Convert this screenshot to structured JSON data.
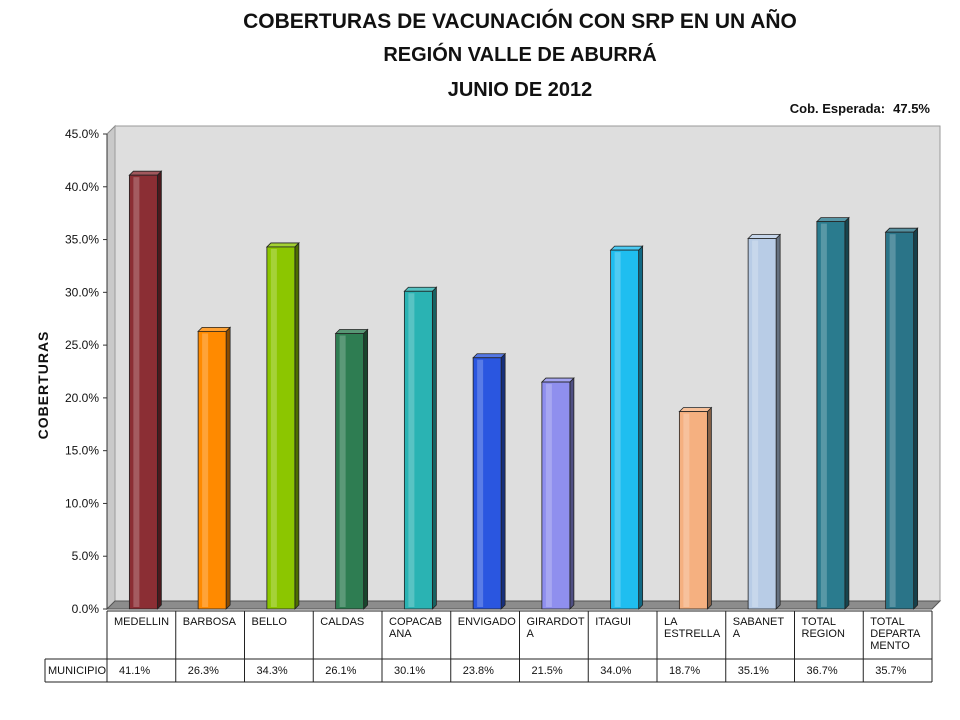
{
  "header": {
    "title_line1": "COBERTURAS DE VACUNACIÓN CON SRP EN UN AÑO",
    "title_line2": "REGIÓN VALLE DE ABURRÁ",
    "title_line3": "JUNIO DE 2012",
    "expected_label": "Cob. Esperada:",
    "expected_value": "47.5%"
  },
  "chart_data": {
    "type": "bar",
    "title": "COBERTURAS DE VACUNACIÓN CON SRP EN UN AÑO REGIÓN VALLE DE ABURRÁ JUNIO DE 2012",
    "ylabel": "COBERTURAS",
    "xlabel": "",
    "ylim": [
      0,
      45
    ],
    "y_ticks": [
      "0.0%",
      "5.0%",
      "10.0%",
      "15.0%",
      "20.0%",
      "25.0%",
      "30.0%",
      "35.0%",
      "40.0%",
      "45.0%"
    ],
    "grid": false,
    "series": [
      {
        "name": "MUNICIPIO",
        "values": [
          41.1,
          26.3,
          34.3,
          26.1,
          30.1,
          23.8,
          21.5,
          34.0,
          18.7,
          35.1,
          36.7,
          35.7
        ],
        "labels": [
          "41.1%",
          "26.3%",
          "34.3%",
          "26.1%",
          "30.1%",
          "23.8%",
          "21.5%",
          "34.0%",
          "18.7%",
          "35.1%",
          "36.7%",
          "35.7%"
        ]
      }
    ],
    "categories": [
      [
        "MEDELLIN"
      ],
      [
        "BARBOSA"
      ],
      [
        "BELLO"
      ],
      [
        "CALDAS"
      ],
      [
        "COPACAB",
        "ANA"
      ],
      [
        "ENVIGADO"
      ],
      [
        "GIRARDOT",
        "A"
      ],
      [
        "ITAGUI"
      ],
      [
        "LA",
        "ESTRELLA"
      ],
      [
        "SABANET",
        "A"
      ],
      [
        "TOTAL",
        "REGION"
      ],
      [
        "TOTAL",
        "DEPARTA",
        "MENTO"
      ]
    ],
    "colors": [
      "#8b2e34",
      "#ff8a00",
      "#8cc600",
      "#2e7d52",
      "#2ab3b3",
      "#2a56e0",
      "#8f8fee",
      "#1fbef0",
      "#f5b080",
      "#b8cce6",
      "#2a7b8e",
      "#2a7488"
    ],
    "plot_background": "#dedede",
    "data_table": true
  }
}
